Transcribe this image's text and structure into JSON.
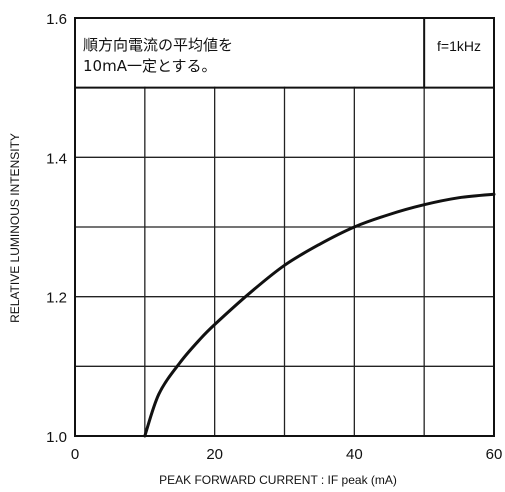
{
  "chart_data": {
    "type": "line",
    "xlabel": "PEAK  FORWARD CURRENT : IF peak (mA)",
    "ylabel": "RELATIVE LUMINOUS INTENSITY",
    "xlim": [
      0,
      60
    ],
    "ylim": [
      1.0,
      1.6
    ],
    "x_ticks": [
      "0",
      "20",
      "40",
      "60"
    ],
    "y_ticks": [
      "1.0",
      "1.2",
      "1.4",
      "1.6"
    ],
    "grid": true,
    "annotations": {
      "note_line1": "順方向電流の平均値を",
      "note_line2": "10mA一定とする。",
      "frequency": "f=1kHz"
    },
    "series": [
      {
        "x": [
          10,
          12,
          15,
          18,
          20,
          25,
          30,
          35,
          40,
          45,
          50,
          55,
          60
        ],
        "y": [
          1.0,
          1.06,
          1.105,
          1.14,
          1.16,
          1.205,
          1.245,
          1.275,
          1.3,
          1.318,
          1.332,
          1.342,
          1.347
        ]
      }
    ]
  }
}
